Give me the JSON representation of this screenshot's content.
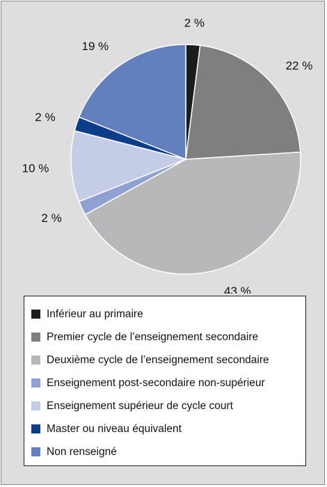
{
  "chart_data": {
    "type": "pie",
    "slices": [
      {
        "label": "Inférieur au primaire",
        "value": 2,
        "value_label": "2 %",
        "color": "#1c1c1c"
      },
      {
        "label": "Premier cycle de l’enseignement secondaire",
        "value": 22,
        "value_label": "22 %",
        "color": "#7f7f7f"
      },
      {
        "label": "Deuxième cycle de l’enseignement secondaire",
        "value": 43,
        "value_label": "43 %",
        "color": "#b8b8bb"
      },
      {
        "label": "Enseignement post-secondaire non-supérieur",
        "value": 2,
        "value_label": "2 %",
        "color": "#8fa0d2"
      },
      {
        "label": "Enseignement supérieur de cycle court",
        "value": 10,
        "value_label": "10 %",
        "color": "#c5cce5"
      },
      {
        "label": "Master ou niveau équivalent",
        "value": 2,
        "value_label": "2 %",
        "color": "#0b3e8a"
      },
      {
        "label": "Non renseigné",
        "value": 19,
        "value_label": "19 %",
        "color": "#6280bd"
      }
    ],
    "start_angle_deg": 0,
    "direction": "clockwise",
    "legend_position": "bottom"
  }
}
